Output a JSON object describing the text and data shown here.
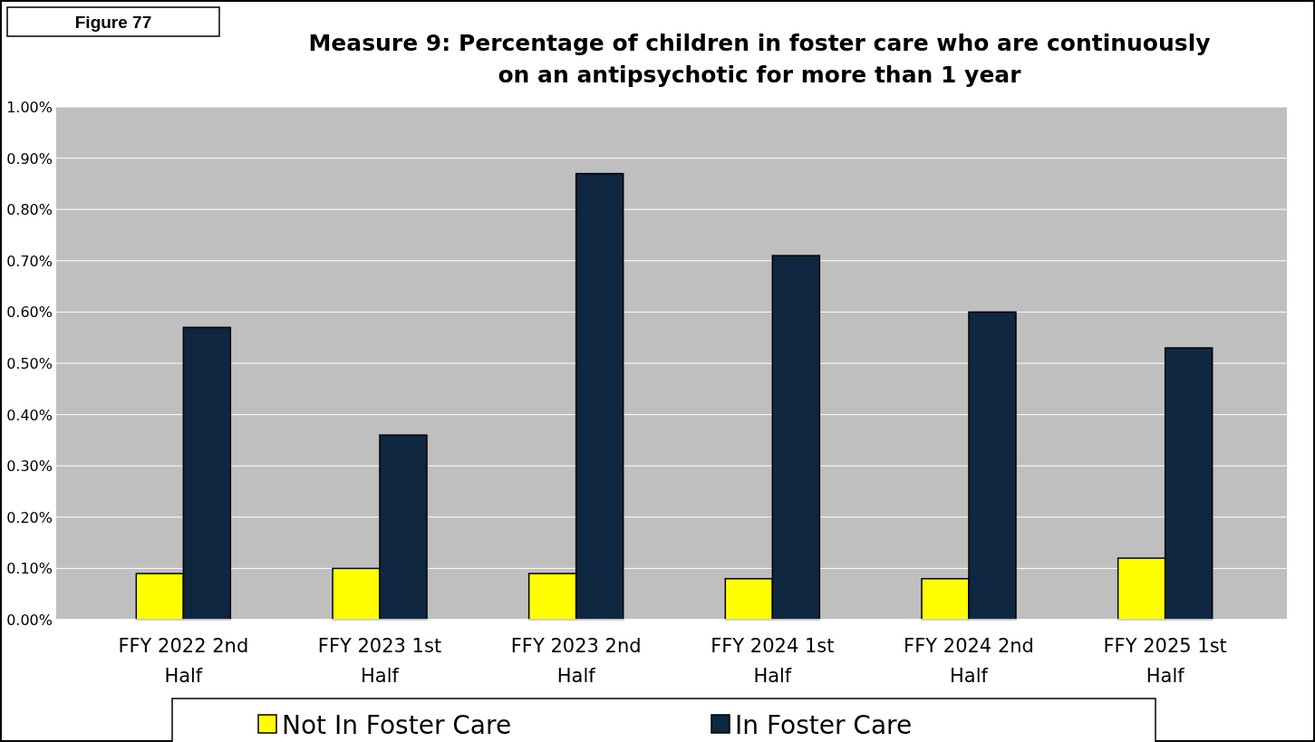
{
  "chart_data": {
    "type": "bar",
    "title": "Measure 9: Percentage of children in foster care who are continuously on an antipsychotic for more than 1 year",
    "annotations": [
      "Figure 77"
    ],
    "categories": [
      "FFY 2022 2nd Half",
      "FFY 2023 1st Half",
      "FFY 2023 2nd Half",
      "FFY 2024 1st Half",
      "FFY 2024 2nd Half",
      "FFY 2025 1st Half"
    ],
    "series": [
      {
        "name": "Not In Foster Care",
        "color": "#ffff00",
        "values": [
          0.09,
          0.1,
          0.09,
          0.08,
          0.08,
          0.12
        ]
      },
      {
        "name": "In Foster Care",
        "color": "#0f2741",
        "values": [
          0.57,
          0.36,
          0.87,
          0.71,
          0.6,
          0.53
        ]
      }
    ],
    "ylim": [
      0,
      1
    ],
    "yticks": [
      {
        "value": 0,
        "label": "0.00%"
      },
      {
        "value": 0.1,
        "label": "0.10%"
      },
      {
        "value": 0.2,
        "label": "0.20%"
      },
      {
        "value": 0.3,
        "label": "0.30%"
      },
      {
        "value": 0.4,
        "label": "0.40%"
      },
      {
        "value": 0.5,
        "label": "0.50%"
      },
      {
        "value": 0.6,
        "label": "0.60%"
      },
      {
        "value": 0.7,
        "label": "0.70%"
      },
      {
        "value": 0.8,
        "label": "0.80%"
      },
      {
        "value": 0.9,
        "label": "0.90%"
      },
      {
        "value": 1,
        "label": "1.00%"
      }
    ],
    "grid": "y",
    "legend": "bottom"
  }
}
